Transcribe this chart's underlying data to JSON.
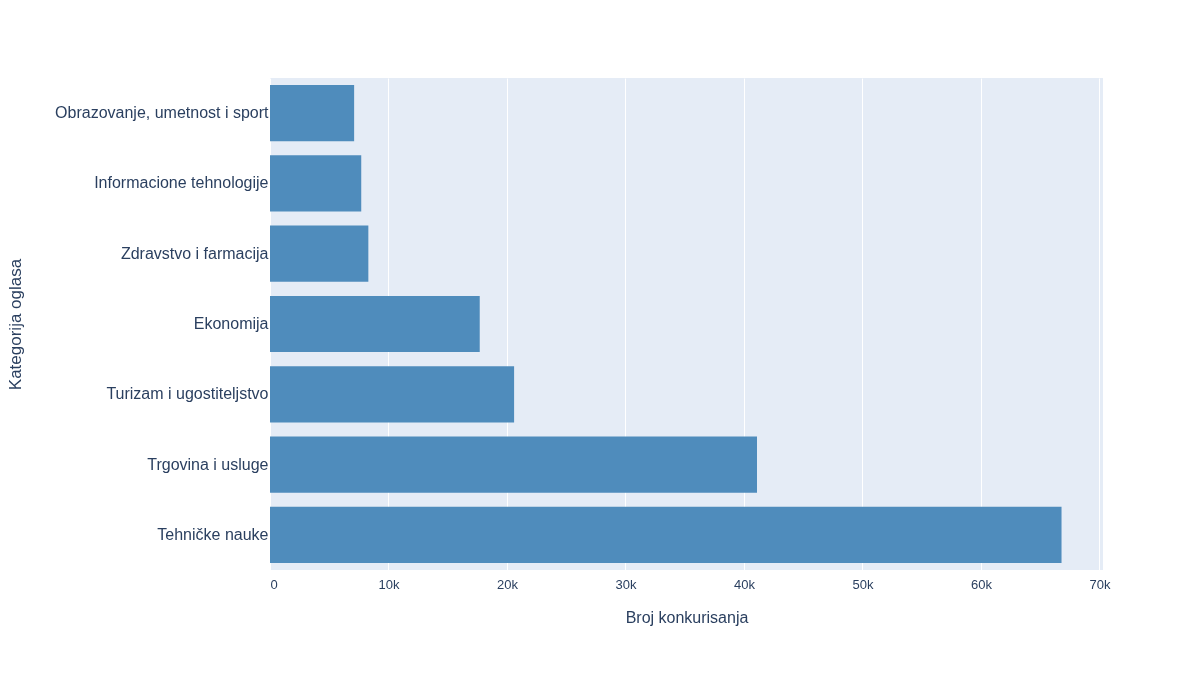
{
  "chart_data": {
    "type": "bar",
    "orientation": "horizontal",
    "xlabel": "Broj konkurisanja",
    "ylabel": "Kategorija oglasa",
    "categories": [
      "Obrazovanje, umetnost i sport",
      "Informacione tehnologije",
      "Zdravstvo i farmacija",
      "Ekonomija",
      "Turizam i ugostiteljstvo",
      "Trgovina i usluge",
      "Tehničke nauke"
    ],
    "values": [
      7100,
      7700,
      8300,
      17700,
      20600,
      41100,
      66800
    ],
    "color": "#4f8cbc",
    "xlim": [
      0,
      70300
    ],
    "xticks": [
      0,
      {
        "value": 10000,
        "label": "10k"
      },
      {
        "value": 20000,
        "label": "20k"
      },
      {
        "value": 30000,
        "label": "30k"
      },
      {
        "value": 40000,
        "label": "40k"
      },
      {
        "value": 50000,
        "label": "50k"
      },
      {
        "value": 60000,
        "label": "60k"
      },
      {
        "value": 70000,
        "label": "70k"
      }
    ],
    "grid": "x"
  }
}
